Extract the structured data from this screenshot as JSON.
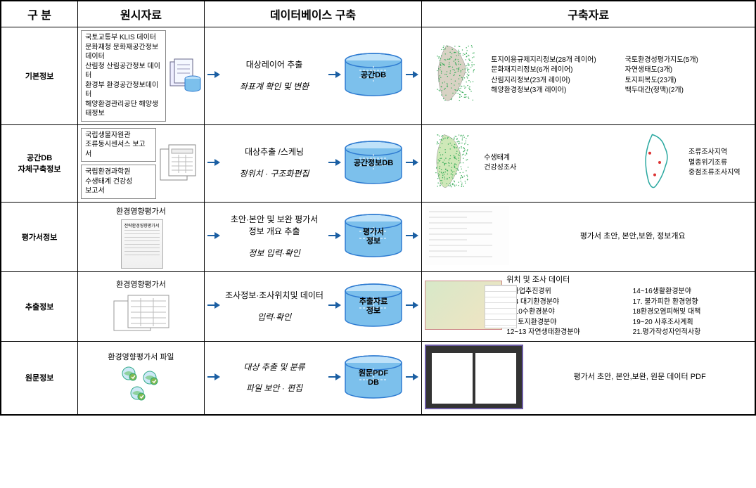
{
  "header": {
    "c1": "구 분",
    "c2": "원시자료",
    "c3": "데이터베이스 구축",
    "c4": "구축자료"
  },
  "rows": [
    {
      "label": "기본정보",
      "source_lines": [
        "국토교통부 KLIS 데이터",
        "문화재청 문화재공간정보 데이터",
        "산림청 산림공간정보 데이터",
        "환경부 환경공간정보데이터",
        "해양환경관리공단 해양생태정보"
      ],
      "source_icon": "stacked-db-docs",
      "flow": {
        "top": "대상레이어 추출",
        "bottom": "좌표계 확인 및 변환",
        "cyl": "공간DB",
        "cyl_color": "#2e7bd1"
      },
      "result": {
        "visual": "korea-dense-map",
        "col1": [
          "토지이용규제지리정보(28개 레이어)",
          "문화재지리정보(6개 레이어)",
          "산림지리정보(23개 레이어)",
          "해양환경정보(3개 레이어)"
        ],
        "col2": [
          "국토환경성평가지도(5개)",
          "자연생태도(3개)",
          "토지피복도(23개)",
          "백두대간(정맥)(2개)"
        ]
      }
    },
    {
      "label": "공간DB\n자체구축정보",
      "source_boxes": [
        {
          "lines": [
            "국립생물자원관",
            "조류동시센서스 보고서"
          ]
        },
        {
          "lines": [
            "국립환경과학원",
            "수생태계 건강성",
            "보고서"
          ]
        }
      ],
      "source_icon": "form-docs",
      "flow": {
        "top": "대상추출 /스케닝",
        "bottom": "정위치 · 구조화편집",
        "cyl": "공간정보DB",
        "cyl_color": "#2e7bd1"
      },
      "result": {
        "visual": "two-korea-maps",
        "mid_text": [
          "수생태계",
          "건강성조사"
        ],
        "right_text": [
          "조류조사지역",
          "멸종위기조류",
          "중점조류조사지역"
        ]
      }
    },
    {
      "label": "평가서정보",
      "source_title": "환경영향평가서",
      "source_icon": "single-doc",
      "flow": {
        "top": "초안·본안 및 보완 평가서\n정보 개요 추출",
        "bottom": "정보 입력·확인",
        "cyl": "평가서\n정보",
        "cyl_color": "#2e7bd1"
      },
      "result": {
        "visual": "form-lines",
        "text": "평가서 초안, 본안,보완, 정보개요"
      }
    },
    {
      "label": "추출정보",
      "source_title": "환경영향평가서",
      "source_icon": "overlap-forms",
      "flow": {
        "top": "조사정보·조사위치및 데이터",
        "bottom": "입력·확인",
        "cyl": "추출자료\n정보",
        "cyl_color": "#2e7bd1"
      },
      "result": {
        "head": "위치 및 조사 데이터",
        "visual": "map-with-table",
        "col1": [
          "1.사업추진경위",
          "2~4 대기환경분야",
          "5~10수환경분야",
          "11. 토지환경분야",
          "12~13 자연생태환경분야"
        ],
        "col2": [
          "14~16생활환경분야",
          "17. 불가피한 환경영향",
          "18환경오염피해및 대책",
          "19~20 사후조사계획",
          "21.평가작성자인적사항"
        ]
      }
    },
    {
      "label": "원문정보",
      "source_title": "환경영향평가서 파일",
      "source_icon": "globe-files",
      "flow": {
        "top": "대상 추출 및 분류",
        "bottom": "파일 보안 · 편집",
        "cyl": "원문PDF\nDB",
        "cyl_color": "#2e7bd1",
        "italic_top": true
      },
      "result": {
        "visual": "pdf-viewer",
        "text": "평가서 초안, 본안,보완, 원문 데이터 PDF"
      }
    }
  ],
  "colors": {
    "border": "#000000",
    "cyl_top": "#9fd4f7",
    "cyl_side": "#4aa3e0",
    "arrow": "#1b5fa3"
  }
}
